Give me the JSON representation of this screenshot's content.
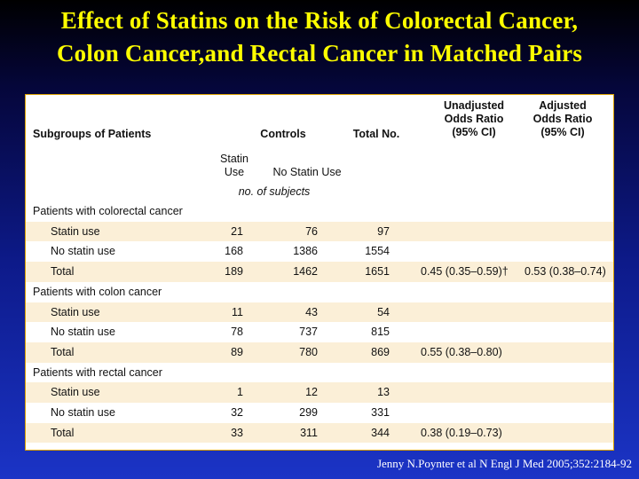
{
  "title": {
    "line1": "Effect of Statins on the Risk of Colorectal Cancer,",
    "line2": "Colon Cancer,and Rectal Cancer in Matched Pairs"
  },
  "table": {
    "headers": {
      "subgroups": "Subgroups of Patients",
      "controls": "Controls",
      "total": "Total No.",
      "unadjusted_l1": "Unadjusted",
      "unadjusted_l2": "Odds Ratio",
      "unadjusted_l3": "(95% CI)",
      "adjusted_l1": "Adjusted",
      "adjusted_l2": "Odds Ratio",
      "adjusted_l3": "(95% CI)",
      "statin_use_l1": "Statin",
      "statin_use_l2": "Use",
      "no_statin_use": "No Statin Use",
      "units": "no. of subjects"
    },
    "rows": [
      {
        "label": "Patients with colorectal cancer",
        "indent": false,
        "shade": false,
        "v1": "",
        "v2": "",
        "v3": "",
        "or1": "",
        "or2": ""
      },
      {
        "label": "Statin use",
        "indent": true,
        "shade": true,
        "v1": "21",
        "v2": "76",
        "v3": "97",
        "or1": "",
        "or2": ""
      },
      {
        "label": "No statin use",
        "indent": true,
        "shade": false,
        "v1": "168",
        "v2": "1386",
        "v3": "1554",
        "or1": "",
        "or2": ""
      },
      {
        "label": "Total",
        "indent": true,
        "shade": true,
        "v1": "189",
        "v2": "1462",
        "v3": "1651",
        "or1": "0.45 (0.35–0.59)†",
        "or2": "0.53 (0.38–0.74)"
      },
      {
        "label": "Patients with colon cancer",
        "indent": false,
        "shade": false,
        "v1": "",
        "v2": "",
        "v3": "",
        "or1": "",
        "or2": ""
      },
      {
        "label": "Statin use",
        "indent": true,
        "shade": true,
        "v1": "11",
        "v2": "43",
        "v3": "54",
        "or1": "",
        "or2": ""
      },
      {
        "label": "No statin use",
        "indent": true,
        "shade": false,
        "v1": "78",
        "v2": "737",
        "v3": "815",
        "or1": "",
        "or2": ""
      },
      {
        "label": "Total",
        "indent": true,
        "shade": true,
        "v1": "89",
        "v2": "780",
        "v3": "869",
        "or1": "0.55 (0.38–0.80)",
        "or2": ""
      },
      {
        "label": "Patients with rectal cancer",
        "indent": false,
        "shade": false,
        "v1": "",
        "v2": "",
        "v3": "",
        "or1": "",
        "or2": ""
      },
      {
        "label": "Statin use",
        "indent": true,
        "shade": true,
        "v1": "1",
        "v2": "12",
        "v3": "13",
        "or1": "",
        "or2": ""
      },
      {
        "label": "No statin use",
        "indent": true,
        "shade": false,
        "v1": "32",
        "v2": "299",
        "v3": "331",
        "or1": "",
        "or2": ""
      },
      {
        "label": "Total",
        "indent": true,
        "shade": true,
        "v1": "33",
        "v2": "311",
        "v3": "344",
        "or1": "0.38 (0.19–0.73)",
        "or2": ""
      }
    ]
  },
  "citation": "Jenny N.Poynter et al N Engl J Med 2005;352:2184-92"
}
